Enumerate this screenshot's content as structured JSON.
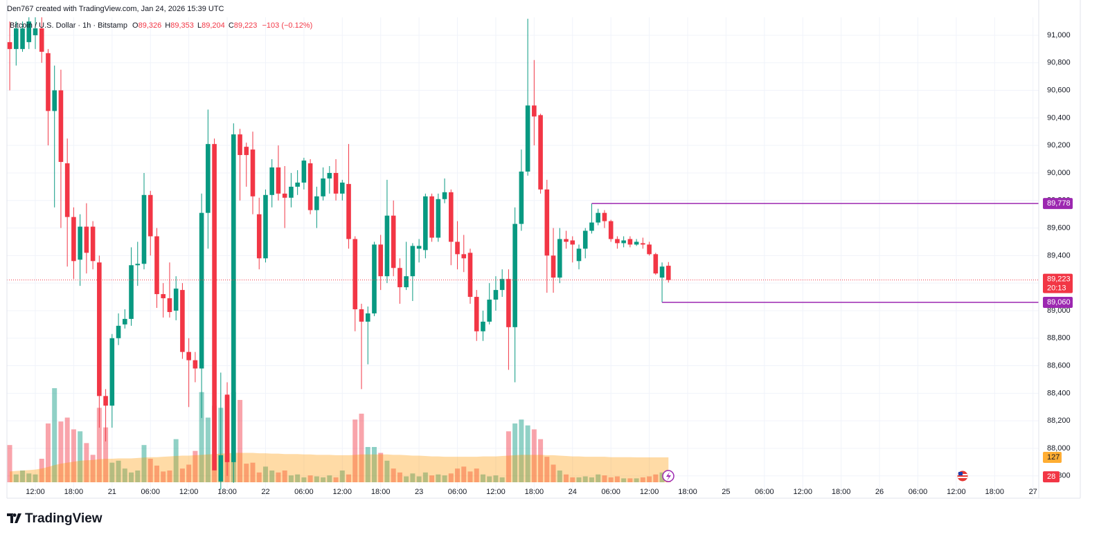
{
  "header": {
    "credit": "Den767 created with TradingView.com, Jan 24, 2026 15:39 UTC",
    "symbol": "Bitcoin / U.S. Dollar · 1h · Bitstamp",
    "ohlc": [
      {
        "key": "O",
        "value": "89,326"
      },
      {
        "key": "H",
        "value": "89,353"
      },
      {
        "key": "L",
        "value": "89,204"
      },
      {
        "key": "C",
        "value": "89,223"
      }
    ],
    "change": "−103 (−0.12%)"
  },
  "footer": {
    "logo": "TradingView"
  },
  "chart_data": {
    "type": "candlestick",
    "up_color": "#089981",
    "down_color": "#f23645",
    "ma_color": "#ff9800",
    "level_color": "#9c27b0",
    "open": [
      90950,
      90900,
      90900,
      90950,
      91000,
      91050,
      90870,
      90450,
      90600,
      90070,
      89680,
      89370,
      89610,
      89610,
      89350,
      88380,
      88310,
      88800,
      88900,
      88940,
      89330,
      89340,
      89840,
      89540,
      89120,
      89090,
      89000,
      89150,
      88700,
      88640,
      88580,
      89710,
      90210,
      87760,
      88390,
      87900,
      90280,
      90190,
      90170,
      89700,
      89380,
      89840,
      90040,
      89850,
      89820,
      89900,
      89930,
      90070,
      89730,
      89830,
      89960,
      90000,
      89850,
      89920,
      89520,
      89010,
      88920,
      88980,
      89480,
      89250,
      89690,
      89310,
      89170,
      89250,
      89450,
      89440,
      89830,
      89530,
      89810,
      89860,
      89500,
      89410,
      89420,
      89100,
      88850,
      88920,
      89080,
      89150,
      89230,
      88880,
      89630,
      90010,
      90490,
      90420,
      89880,
      89400,
      89240,
      89520,
      89510,
      89360,
      89450,
      89580,
      89640,
      89710,
      89650,
      89520,
      89490,
      89520,
      89480,
      89490,
      89480,
      89410,
      89240,
      89326
    ],
    "high": [
      91100,
      91100,
      91100,
      91150,
      91150,
      91150,
      90900,
      90780,
      90750,
      90250,
      89750,
      89700,
      89780,
      89650,
      89400,
      88430,
      88830,
      88980,
      89010,
      89460,
      89500,
      90000,
      89870,
      89600,
      89200,
      89350,
      89250,
      89200,
      88800,
      88700,
      89850,
      90460,
      90250,
      88550,
      88480,
      90360,
      90320,
      90220,
      90300,
      89820,
      89880,
      90100,
      90200,
      90050,
      90000,
      90020,
      90110,
      90100,
      89900,
      90040,
      90050,
      90100,
      89950,
      90210,
      89540,
      89050,
      89030,
      89500,
      89550,
      89950,
      89800,
      89380,
      89500,
      89490,
      89520,
      89850,
      89850,
      89850,
      89960,
      89880,
      89650,
      89550,
      89450,
      89150,
      89000,
      89200,
      89250,
      89300,
      89300,
      89750,
      90170,
      91120,
      90820,
      90430,
      89950,
      89600,
      89600,
      89580,
      89540,
      89480,
      89600,
      89778,
      89740,
      89730,
      89660,
      89540,
      89540,
      89540,
      89520,
      89530,
      89500,
      89420,
      89350,
      89353
    ],
    "low": [
      90600,
      90780,
      90880,
      90900,
      90900,
      90800,
      90200,
      89750,
      89600,
      89320,
      89230,
      89180,
      89270,
      89300,
      88150,
      88050,
      88150,
      88750,
      88870,
      88890,
      89180,
      89300,
      89400,
      89020,
      88950,
      88950,
      88930,
      88650,
      88300,
      88480,
      88220,
      89450,
      87840,
      87700,
      87800,
      87750,
      89800,
      89900,
      89700,
      89300,
      89350,
      89750,
      89800,
      89600,
      89750,
      89840,
      89880,
      89700,
      89600,
      89800,
      89850,
      89800,
      89800,
      89450,
      88850,
      88430,
      88610,
      88960,
      89150,
      89200,
      89250,
      89050,
      89150,
      89070,
      89350,
      89380,
      89500,
      89500,
      89780,
      89330,
      89300,
      89280,
      89050,
      88780,
      88780,
      88900,
      89000,
      89100,
      88570,
      88480,
      89580,
      89980,
      90200,
      89850,
      89130,
      89130,
      89200,
      89450,
      89350,
      89300,
      89380,
      89560,
      89620,
      89600,
      89500,
      89450,
      89460,
      89460,
      89470,
      89450,
      89400,
      89260,
      89060,
      89204
    ],
    "close": [
      90900,
      91050,
      91050,
      91100,
      91050,
      90880,
      90450,
      90600,
      90080,
      89680,
      89360,
      89610,
      89420,
      89360,
      88380,
      88310,
      88800,
      88890,
      88940,
      89330,
      89340,
      89840,
      89540,
      89120,
      89090,
      88990,
      89160,
      88700,
      88640,
      88580,
      89710,
      90210,
      87840,
      87950,
      87900,
      90280,
      90130,
      90130,
      89830,
      89380,
      89840,
      90040,
      89850,
      89820,
      89900,
      89930,
      90090,
      89730,
      89830,
      89960,
      90000,
      89850,
      89930,
      89520,
      89010,
      88920,
      88980,
      89480,
      89250,
      89690,
      89310,
      89170,
      89250,
      89470,
      89470,
      89830,
      89530,
      89810,
      89860,
      89500,
      89410,
      89380,
      89100,
      88850,
      88920,
      89080,
      89150,
      89230,
      88880,
      89630,
      90010,
      90490,
      90410,
      89880,
      89400,
      89240,
      89520,
      89500,
      89480,
      89450,
      89580,
      89640,
      89710,
      89650,
      89520,
      89490,
      89510,
      89480,
      89500,
      89480,
      89410,
      89270,
      89320,
      89223
    ],
    "volume": [
      190,
      40,
      60,
      45,
      40,
      120,
      300,
      480,
      310,
      330,
      270,
      260,
      200,
      140,
      380,
      280,
      100,
      110,
      70,
      50,
      60,
      190,
      120,
      85,
      55,
      60,
      220,
      70,
      90,
      160,
      460,
      330,
      390,
      380,
      440,
      460,
      420,
      95,
      100,
      50,
      80,
      60,
      50,
      60,
      35,
      40,
      25,
      35,
      30,
      25,
      35,
      25,
      60,
      40,
      320,
      350,
      180,
      180,
      150,
      110,
      70,
      50,
      30,
      45,
      30,
      50,
      35,
      40,
      35,
      45,
      70,
      80,
      55,
      70,
      40,
      30,
      35,
      25,
      260,
      300,
      320,
      290,
      270,
      220,
      130,
      90,
      60,
      40,
      25,
      25,
      30,
      25,
      40,
      35,
      25,
      30,
      20,
      20,
      20,
      25,
      30,
      40,
      50,
      28
    ],
    "volume_ma": [
      55,
      58,
      60,
      62,
      65,
      70,
      78,
      88,
      95,
      100,
      105,
      110,
      112,
      114,
      118,
      120,
      120,
      122,
      122,
      122,
      124,
      126,
      128,
      128,
      130,
      132,
      134,
      136,
      136,
      138,
      140,
      142,
      144,
      146,
      148,
      150,
      150,
      150,
      150,
      148,
      148,
      146,
      146,
      144,
      144,
      144,
      142,
      142,
      140,
      140,
      140,
      138,
      138,
      138,
      140,
      142,
      142,
      142,
      142,
      142,
      140,
      140,
      138,
      136,
      136,
      134,
      132,
      132,
      130,
      130,
      130,
      130,
      130,
      130,
      132,
      132,
      132,
      134,
      136,
      138,
      140,
      140,
      140,
      140,
      138,
      138,
      136,
      134,
      132,
      132,
      130,
      130,
      130,
      130,
      128,
      128,
      128,
      128,
      127,
      127,
      127,
      127,
      127,
      127
    ],
    "last_price": {
      "value": 89223,
      "label": "89,223"
    },
    "countdown": "20:13",
    "levels": [
      {
        "value": 89778,
        "label": "89,778",
        "from": 91
      },
      {
        "value": 89060,
        "label": "89,060",
        "from": 102
      }
    ],
    "xlim": [
      -0.44,
      160.9
    ],
    "ylim": [
      87638,
      91256
    ],
    "yticks": [
      {
        "value": 87800,
        "label": "87,800"
      },
      {
        "value": 88000,
        "label": "88,000"
      },
      {
        "value": 88200,
        "label": "88,200"
      },
      {
        "value": 88400,
        "label": "88,400"
      },
      {
        "value": 88600,
        "label": "88,600"
      },
      {
        "value": 88800,
        "label": "88,800"
      },
      {
        "value": 89000,
        "label": "89,000"
      },
      {
        "value": 89200,
        "label": "89,200"
      },
      {
        "value": 89400,
        "label": "89,400"
      },
      {
        "value": 89600,
        "label": "89,600"
      },
      {
        "value": 89800,
        "label": "89,800"
      },
      {
        "value": 90000,
        "label": "90,000"
      },
      {
        "value": 90200,
        "label": "90,200"
      },
      {
        "value": 90400,
        "label": "90,400"
      },
      {
        "value": 90600,
        "label": "90,600"
      },
      {
        "value": 90800,
        "label": "90,800"
      },
      {
        "value": 91000,
        "label": "91,000"
      }
    ],
    "xticks": [
      {
        "value": 4,
        "label": "12:00"
      },
      {
        "value": 10,
        "label": "18:00"
      },
      {
        "value": 16,
        "label": "21"
      },
      {
        "value": 22,
        "label": "06:00"
      },
      {
        "value": 28,
        "label": "12:00"
      },
      {
        "value": 34,
        "label": "18:00"
      },
      {
        "value": 40,
        "label": "22"
      },
      {
        "value": 46,
        "label": "06:00"
      },
      {
        "value": 52,
        "label": "12:00"
      },
      {
        "value": 58,
        "label": "18:00"
      },
      {
        "value": 64,
        "label": "23"
      },
      {
        "value": 70,
        "label": "06:00"
      },
      {
        "value": 76,
        "label": "12:00"
      },
      {
        "value": 82,
        "label": "18:00"
      },
      {
        "value": 88,
        "label": "24"
      },
      {
        "value": 94,
        "label": "06:00"
      },
      {
        "value": 100,
        "label": "12:00"
      },
      {
        "value": 106,
        "label": "18:00"
      },
      {
        "value": 112,
        "label": "25"
      },
      {
        "value": 118,
        "label": "06:00"
      },
      {
        "value": 124,
        "label": "12:00"
      },
      {
        "value": 130,
        "label": "18:00"
      },
      {
        "value": 136,
        "label": "26"
      },
      {
        "value": 142,
        "label": "06:00"
      },
      {
        "value": 148,
        "label": "12:00"
      },
      {
        "value": 154,
        "label": "18:00"
      },
      {
        "value": 160,
        "label": "27"
      }
    ],
    "grid": true
  }
}
